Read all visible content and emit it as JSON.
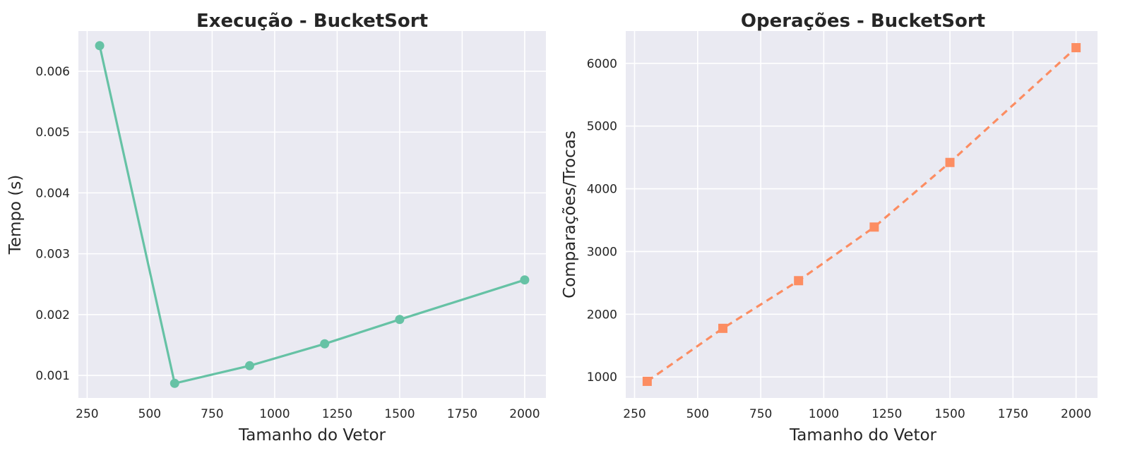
{
  "chart_data": [
    {
      "type": "line",
      "title": "Execução - BucketSort",
      "xlabel": "Tamanho do Vetor",
      "ylabel": "Tempo (s)",
      "x": [
        300,
        600,
        900,
        1200,
        1500,
        2000
      ],
      "series": [
        {
          "values": [
            0.00642,
            0.00087,
            0.00116,
            0.00152,
            0.00192,
            0.00257
          ],
          "color": "#66c2a5",
          "marker": "circle",
          "linestyle": "solid"
        }
      ],
      "xlim": [
        215,
        2085
      ],
      "ylim": [
        0.00063,
        0.00666
      ],
      "xticks": [
        250,
        500,
        750,
        1000,
        1250,
        1500,
        1750,
        2000
      ],
      "xtick_labels": [
        "250",
        "500",
        "750",
        "1000",
        "1250",
        "1500",
        "1750",
        "2000"
      ],
      "yticks": [
        0.001,
        0.002,
        0.003,
        0.004,
        0.005,
        0.006
      ],
      "ytick_labels": [
        "0.001",
        "0.002",
        "0.003",
        "0.004",
        "0.005",
        "0.006"
      ],
      "grid": true,
      "background": "#eaeaf2"
    },
    {
      "type": "line",
      "title": "Operações - BucketSort",
      "xlabel": "Tamanho do Vetor",
      "ylabel": "Comparações/Trocas",
      "x": [
        300,
        600,
        900,
        1200,
        1500,
        2000
      ],
      "series": [
        {
          "values": [
            930,
            1775,
            2535,
            3390,
            4420,
            6250
          ],
          "color": "#fc8d62",
          "marker": "square",
          "linestyle": "dashed"
        }
      ],
      "xlim": [
        215,
        2085
      ],
      "ylim": [
        665,
        6515
      ],
      "xticks": [
        250,
        500,
        750,
        1000,
        1250,
        1500,
        1750,
        2000
      ],
      "xtick_labels": [
        "250",
        "500",
        "750",
        "1000",
        "1250",
        "1500",
        "1750",
        "2000"
      ],
      "yticks": [
        1000,
        2000,
        3000,
        4000,
        5000,
        6000
      ],
      "ytick_labels": [
        "1000",
        "2000",
        "3000",
        "4000",
        "5000",
        "6000"
      ],
      "grid": true,
      "background": "#eaeaf2"
    }
  ]
}
